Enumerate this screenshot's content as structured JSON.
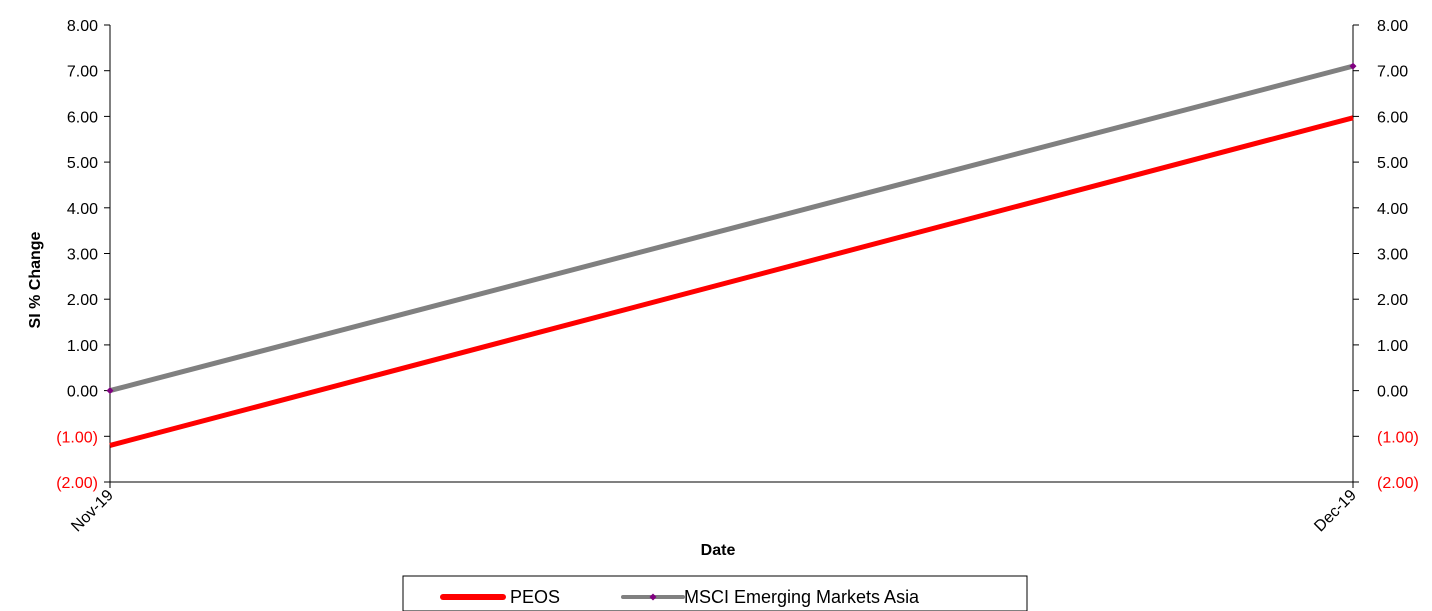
{
  "chart_data": {
    "type": "line",
    "x": [
      "Nov-19",
      "Dec-19"
    ],
    "xlabel": "Date",
    "ylabel": "SI % Change",
    "ylim": [
      -2,
      8
    ],
    "y_tick_values": [
      8,
      7,
      6,
      5,
      4,
      3,
      2,
      1,
      0,
      -1,
      -2
    ],
    "y_tick_labels": [
      "8.00",
      "7.00",
      "6.00",
      "5.00",
      "4.00",
      "3.00",
      "2.00",
      "1.00",
      "0.00",
      "(1.00)",
      "(2.00)"
    ],
    "secondary_y_axis": true,
    "grid": false,
    "legend_position": "bottom",
    "series": [
      {
        "name": "PEOS",
        "values": [
          -1.2,
          5.97
        ],
        "color": "#ff0000",
        "marker": "none"
      },
      {
        "name": "MSCI Emerging Markets Asia",
        "values": [
          0.0,
          7.1
        ],
        "color": "#808080",
        "marker": "diamond",
        "marker_color": "#800080"
      }
    ],
    "positive_tick_color": "#000000",
    "negative_tick_color": "#ff0000"
  }
}
